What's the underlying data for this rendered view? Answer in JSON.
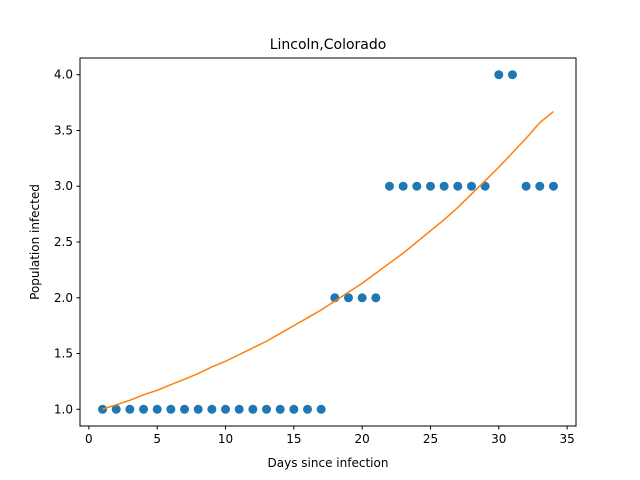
{
  "chart_data": {
    "type": "scatter",
    "title": "Lincoln,Colorado",
    "xlabel": "Days since infection",
    "ylabel": "Population infected",
    "xlim": [
      -0.65,
      35.65
    ],
    "ylim": [
      0.85,
      4.15
    ],
    "xticks": [
      0,
      5,
      10,
      15,
      20,
      25,
      30,
      35
    ],
    "yticks": [
      1.0,
      1.5,
      2.0,
      2.5,
      3.0,
      3.5,
      4.0
    ],
    "grid": false,
    "series": [
      {
        "kind": "scatter",
        "color": "#1f77b4",
        "x": [
          1,
          2,
          3,
          4,
          5,
          6,
          7,
          8,
          9,
          10,
          11,
          12,
          13,
          14,
          15,
          16,
          17,
          18,
          19,
          20,
          21,
          22,
          23,
          24,
          25,
          26,
          27,
          28,
          29,
          30,
          31,
          32,
          33,
          34
        ],
        "y": [
          1,
          1,
          1,
          1,
          1,
          1,
          1,
          1,
          1,
          1,
          1,
          1,
          1,
          1,
          1,
          1,
          1,
          2,
          2,
          2,
          2,
          3,
          3,
          3,
          3,
          3,
          3,
          3,
          3,
          4,
          4,
          3,
          3,
          3
        ]
      },
      {
        "kind": "line",
        "color": "#ff7f0e",
        "x": [
          1,
          2,
          3,
          4,
          5,
          6,
          7,
          8,
          9,
          10,
          11,
          12,
          13,
          14,
          15,
          16,
          17,
          18,
          19,
          20,
          21,
          22,
          23,
          24,
          25,
          26,
          27,
          28,
          29,
          30,
          31,
          32,
          33,
          34
        ],
        "y": [
          1.0,
          1.04,
          1.08,
          1.13,
          1.17,
          1.22,
          1.27,
          1.32,
          1.38,
          1.43,
          1.49,
          1.55,
          1.61,
          1.68,
          1.75,
          1.82,
          1.89,
          1.97,
          2.05,
          2.13,
          2.22,
          2.31,
          2.4,
          2.5,
          2.6,
          2.7,
          2.81,
          2.93,
          3.05,
          3.17,
          3.3,
          3.43,
          3.57,
          3.67
        ]
      }
    ]
  }
}
